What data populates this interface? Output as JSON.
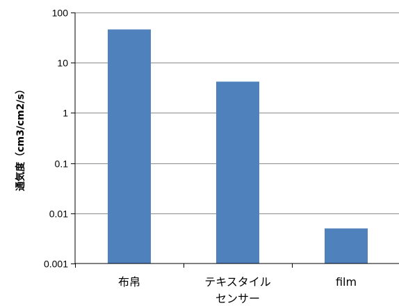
{
  "chart_data": {
    "type": "bar",
    "scale": "log",
    "ylabel": "通気度（cm3/cm2/s）",
    "xlabel": "",
    "title": "",
    "ylim": [
      0.001,
      100
    ],
    "y_ticks": [
      "100",
      "10",
      "1",
      "0.1",
      "0.01",
      "0.001"
    ],
    "categories": [
      {
        "lines": [
          "布帛"
        ]
      },
      {
        "lines": [
          "テキスタイル",
          "センサー"
        ]
      },
      {
        "lines": [
          "film"
        ]
      }
    ],
    "values": [
      46,
      4.2,
      0.005
    ],
    "bar_color": "#4f81bd",
    "grid": true,
    "grid_color": "#8c8c8c",
    "legend": "none"
  }
}
